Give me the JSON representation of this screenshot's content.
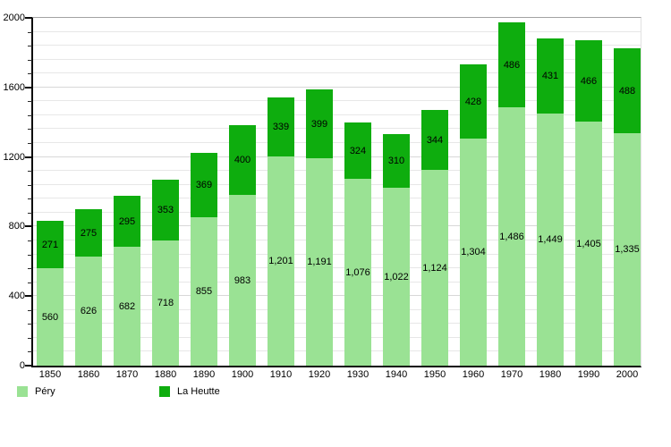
{
  "chart_data": {
    "type": "bar",
    "stacked": true,
    "title": "",
    "xlabel": "",
    "ylabel": "",
    "categories": [
      "1850",
      "1860",
      "1870",
      "1880",
      "1890",
      "1900",
      "1910",
      "1920",
      "1930",
      "1940",
      "1950",
      "1960",
      "1970",
      "1980",
      "1990",
      "2000"
    ],
    "series": [
      {
        "name": "Péry",
        "color": "#9ae294",
        "values": [
          560,
          626,
          682,
          718,
          855,
          983,
          1201,
          1191,
          1076,
          1022,
          1124,
          1304,
          1486,
          1449,
          1405,
          1335
        ]
      },
      {
        "name": "La Heutte",
        "color": "#0ead0e",
        "values": [
          271,
          275,
          295,
          353,
          369,
          400,
          339,
          399,
          324,
          310,
          344,
          428,
          486,
          431,
          466,
          488
        ]
      }
    ],
    "ylim": [
      0,
      2000
    ],
    "yticks": [
      0,
      400,
      800,
      1200,
      1600,
      2000
    ],
    "minor_tick_step": 80,
    "grid": true,
    "value_labels": "inside-center",
    "value_label_color": "#000000",
    "legend_position": "bottom-left"
  },
  "legend": {
    "items": [
      {
        "label": "Péry",
        "color": "#9ae294"
      },
      {
        "label": "La Heutte",
        "color": "#0ead0e"
      }
    ]
  },
  "style_colors": {
    "axis": "#0a0a0a",
    "plot_top_border": "#a3a3a3",
    "plot_right_border": "#e2e2e2",
    "minor_gridline": "#e7e7e7",
    "major_gridline": "#d8d8d8",
    "background": "#ffffff"
  }
}
